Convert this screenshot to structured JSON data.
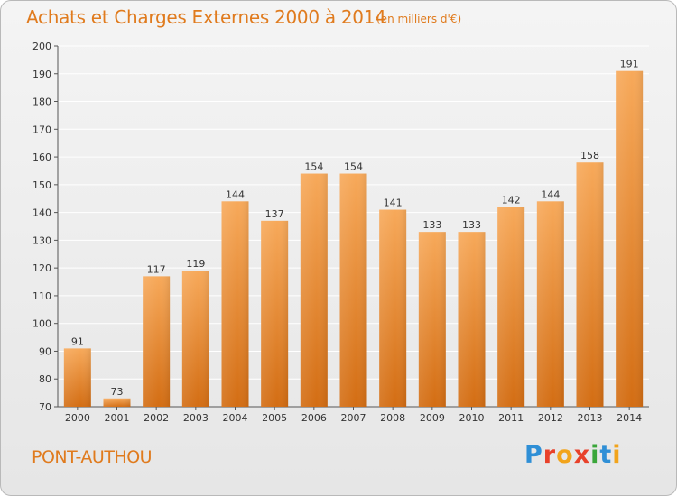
{
  "header": {
    "title": "Achats et Charges Externes 2000 à 2014",
    "subtitle": "(en milliers d'€)"
  },
  "footer": {
    "town": "PONT-AUTHOU",
    "logo": "Proxiti",
    "logo_colors": [
      "#2f8fd6",
      "#e8412a",
      "#f2a41b",
      "#e8412a",
      "#3aa63a",
      "#2f8fd6",
      "#f2a41b"
    ]
  },
  "colors": {
    "bar_top": "#f7a95a",
    "bar_bottom": "#d36d13",
    "accent": "#e07b1e"
  },
  "chart_data": {
    "type": "bar",
    "title": "Achats et Charges Externes 2000 à 2014",
    "subtitle": "(en milliers d'€)",
    "xlabel": "",
    "ylabel": "",
    "categories": [
      "2000",
      "2001",
      "2002",
      "2003",
      "2004",
      "2005",
      "2006",
      "2007",
      "2008",
      "2009",
      "2010",
      "2011",
      "2012",
      "2013",
      "2014"
    ],
    "values": [
      91,
      73,
      117,
      119,
      144,
      137,
      154,
      154,
      141,
      133,
      133,
      142,
      144,
      158,
      191
    ],
    "ylim": [
      70,
      200
    ],
    "yticks": [
      70,
      80,
      90,
      100,
      110,
      120,
      130,
      140,
      150,
      160,
      170,
      180,
      190,
      200
    ],
    "grid": true,
    "legend": "none"
  }
}
